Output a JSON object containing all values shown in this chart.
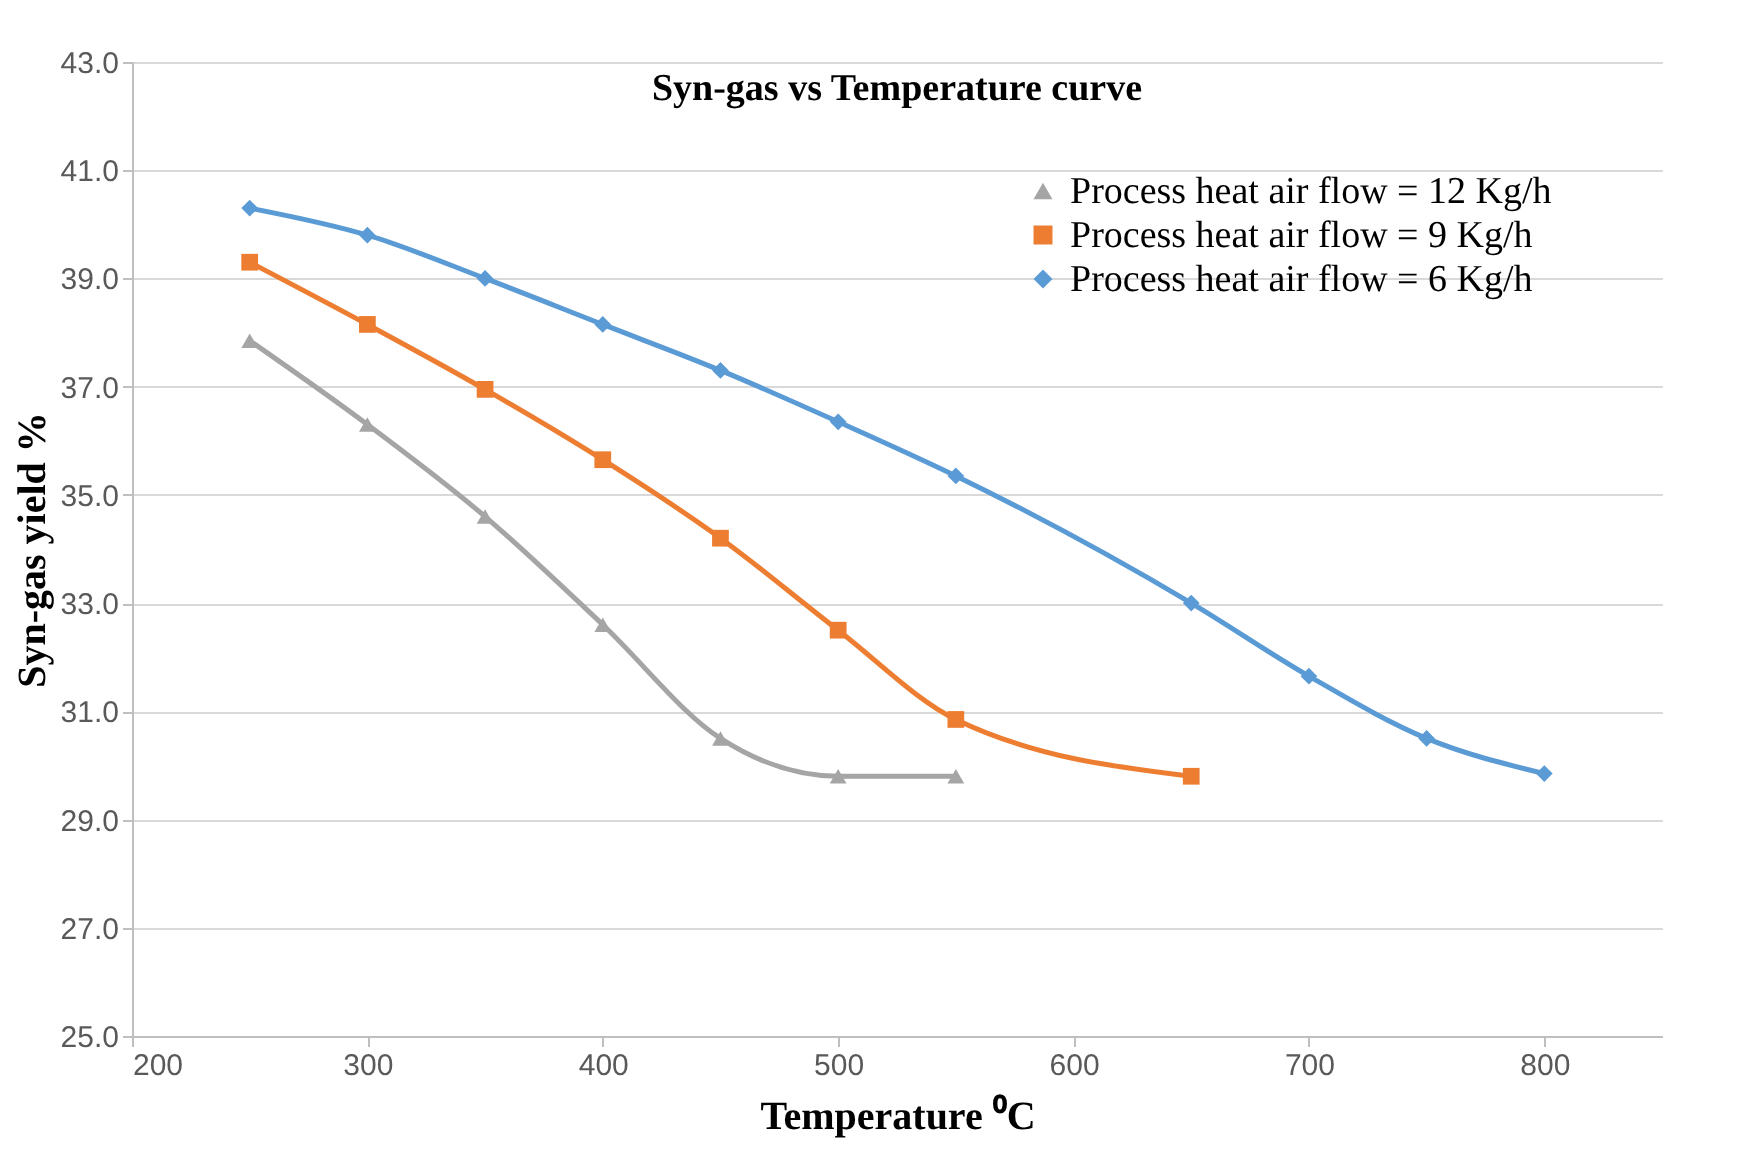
{
  "chart_data": {
    "type": "line",
    "title": "Syn-gas vs Temperature curve",
    "xlabel": "Temperature ⁰C",
    "ylabel": "Syn-gas yield %",
    "x": [
      250,
      300,
      350,
      400,
      450,
      500,
      550,
      600,
      650,
      700,
      750,
      800
    ],
    "series": [
      {
        "name": "Process heat air flow = 12 Kg/h",
        "color": "#a5a5a5",
        "marker": "triangle",
        "values": [
          37.85,
          36.3,
          34.6,
          32.6,
          30.5,
          29.8,
          29.8,
          null,
          null,
          null,
          null,
          null
        ]
      },
      {
        "name": "Process heat air flow = 9 Kg/h",
        "color": "#ed7d31",
        "marker": "square",
        "values": [
          39.3,
          38.15,
          36.95,
          35.65,
          34.2,
          32.5,
          30.85,
          null,
          29.8,
          null,
          null,
          null
        ]
      },
      {
        "name": "Process heat air flow = 6 Kg/h",
        "color": "#5b9bd5",
        "marker": "diamond",
        "values": [
          40.3,
          39.8,
          39.0,
          38.15,
          37.3,
          36.35,
          35.35,
          null,
          33.0,
          31.65,
          30.5,
          29.85
        ]
      }
    ],
    "xlim": [
      200,
      850
    ],
    "xticks": [
      200,
      300,
      400,
      500,
      600,
      700,
      800
    ],
    "ylim": [
      25,
      43
    ],
    "yticks": [
      {
        "value": 25,
        "label": "25.0"
      },
      {
        "value": 27,
        "label": "27.0"
      },
      {
        "value": 29,
        "label": "29.0"
      },
      {
        "value": 31,
        "label": "31.0"
      },
      {
        "value": 33,
        "label": "33.0"
      },
      {
        "value": 35,
        "label": "35.0"
      },
      {
        "value": 37,
        "label": "37.0"
      },
      {
        "value": 39,
        "label": "39.0"
      },
      {
        "value": 41,
        "label": "41.0"
      },
      {
        "value": 43,
        "label": "43.0"
      }
    ],
    "grid": "y",
    "legend": "top right",
    "line_style": "solid"
  }
}
